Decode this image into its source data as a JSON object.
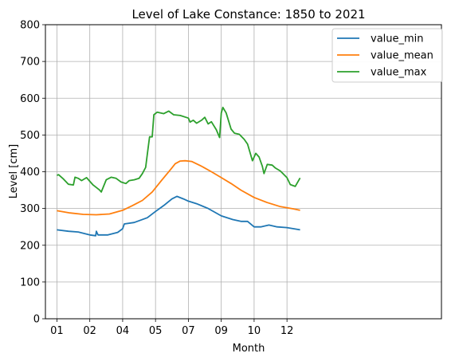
{
  "chart_data": {
    "type": "line",
    "title": "Level of Lake Constance: 1850 to 2021",
    "xlabel": "Month",
    "ylabel": "Level [cm]",
    "ylim": [
      0,
      800
    ],
    "yticks": [
      0,
      100,
      200,
      300,
      400,
      500,
      600,
      700,
      800
    ],
    "xlim": [
      0.65,
      12.7
    ],
    "xticks": [
      {
        "label": "01",
        "x": 1.0
      },
      {
        "label": "02",
        "x": 2.0
      },
      {
        "label": "04",
        "x": 3.0
      },
      {
        "label": "05",
        "x": 4.0
      },
      {
        "label": "07",
        "x": 5.0
      },
      {
        "label": "09",
        "x": 6.0
      },
      {
        "label": "10",
        "x": 7.0
      },
      {
        "label": "12",
        "x": 8.0
      }
    ],
    "grid": true,
    "legend_position": "top-right",
    "series": [
      {
        "name": "value_min",
        "color": "#1f77b4",
        "points": [
          [
            1.0,
            242
          ],
          [
            1.35,
            238
          ],
          [
            1.65,
            236
          ],
          [
            2.0,
            228
          ],
          [
            2.18,
            226
          ],
          [
            2.2,
            238
          ],
          [
            2.25,
            228
          ],
          [
            2.55,
            228
          ],
          [
            2.85,
            235
          ],
          [
            3.0,
            245
          ],
          [
            3.05,
            258
          ],
          [
            3.35,
            262
          ],
          [
            3.75,
            275
          ],
          [
            4.0,
            292
          ],
          [
            4.25,
            308
          ],
          [
            4.5,
            326
          ],
          [
            4.65,
            333
          ],
          [
            4.85,
            326
          ],
          [
            5.0,
            320
          ],
          [
            5.25,
            313
          ],
          [
            5.6,
            300
          ],
          [
            6.0,
            280
          ],
          [
            6.35,
            270
          ],
          [
            6.6,
            265
          ],
          [
            6.8,
            265
          ],
          [
            7.0,
            250
          ],
          [
            7.2,
            250
          ],
          [
            7.45,
            255
          ],
          [
            7.7,
            250
          ],
          [
            8.0,
            248
          ],
          [
            8.4,
            242
          ]
        ]
      },
      {
        "name": "value_mean",
        "color": "#ff7f0e",
        "points": [
          [
            1.0,
            294
          ],
          [
            1.4,
            288
          ],
          [
            1.8,
            284
          ],
          [
            2.2,
            283
          ],
          [
            2.6,
            285
          ],
          [
            3.0,
            295
          ],
          [
            3.3,
            308
          ],
          [
            3.6,
            322
          ],
          [
            3.9,
            345
          ],
          [
            4.2,
            378
          ],
          [
            4.45,
            405
          ],
          [
            4.6,
            422
          ],
          [
            4.75,
            429
          ],
          [
            4.9,
            430
          ],
          [
            5.1,
            428
          ],
          [
            5.4,
            415
          ],
          [
            5.7,
            400
          ],
          [
            6.0,
            384
          ],
          [
            6.3,
            368
          ],
          [
            6.6,
            350
          ],
          [
            7.0,
            330
          ],
          [
            7.4,
            316
          ],
          [
            7.8,
            305
          ],
          [
            8.2,
            299
          ],
          [
            8.4,
            295
          ]
        ]
      },
      {
        "name": "value_max",
        "color": "#2ca02c",
        "points": [
          [
            1.0,
            390
          ],
          [
            1.05,
            392
          ],
          [
            1.2,
            380
          ],
          [
            1.35,
            366
          ],
          [
            1.5,
            364
          ],
          [
            1.55,
            385
          ],
          [
            1.65,
            382
          ],
          [
            1.75,
            376
          ],
          [
            1.9,
            384
          ],
          [
            2.1,
            364
          ],
          [
            2.3,
            350
          ],
          [
            2.35,
            345
          ],
          [
            2.5,
            378
          ],
          [
            2.65,
            385
          ],
          [
            2.8,
            382
          ],
          [
            2.95,
            372
          ],
          [
            3.1,
            368
          ],
          [
            3.2,
            376
          ],
          [
            3.35,
            378
          ],
          [
            3.5,
            382
          ],
          [
            3.6,
            395
          ],
          [
            3.7,
            412
          ],
          [
            3.75,
            448
          ],
          [
            3.82,
            495
          ],
          [
            3.9,
            495
          ],
          [
            3.95,
            555
          ],
          [
            4.05,
            562
          ],
          [
            4.25,
            558
          ],
          [
            4.4,
            565
          ],
          [
            4.55,
            555
          ],
          [
            4.75,
            553
          ],
          [
            5.0,
            546
          ],
          [
            5.05,
            535
          ],
          [
            5.15,
            540
          ],
          [
            5.25,
            532
          ],
          [
            5.4,
            540
          ],
          [
            5.5,
            548
          ],
          [
            5.6,
            530
          ],
          [
            5.7,
            536
          ],
          [
            5.85,
            514
          ],
          [
            5.95,
            493
          ],
          [
            6.0,
            560
          ],
          [
            6.05,
            575
          ],
          [
            6.15,
            560
          ],
          [
            6.3,
            516
          ],
          [
            6.4,
            505
          ],
          [
            6.55,
            502
          ],
          [
            6.7,
            488
          ],
          [
            6.8,
            475
          ],
          [
            6.95,
            430
          ],
          [
            7.05,
            450
          ],
          [
            7.15,
            440
          ],
          [
            7.25,
            415
          ],
          [
            7.3,
            395
          ],
          [
            7.4,
            420
          ],
          [
            7.55,
            418
          ],
          [
            7.65,
            410
          ],
          [
            7.8,
            402
          ],
          [
            8.0,
            384
          ],
          [
            8.1,
            365
          ],
          [
            8.25,
            360
          ],
          [
            8.4,
            383
          ]
        ]
      }
    ]
  }
}
